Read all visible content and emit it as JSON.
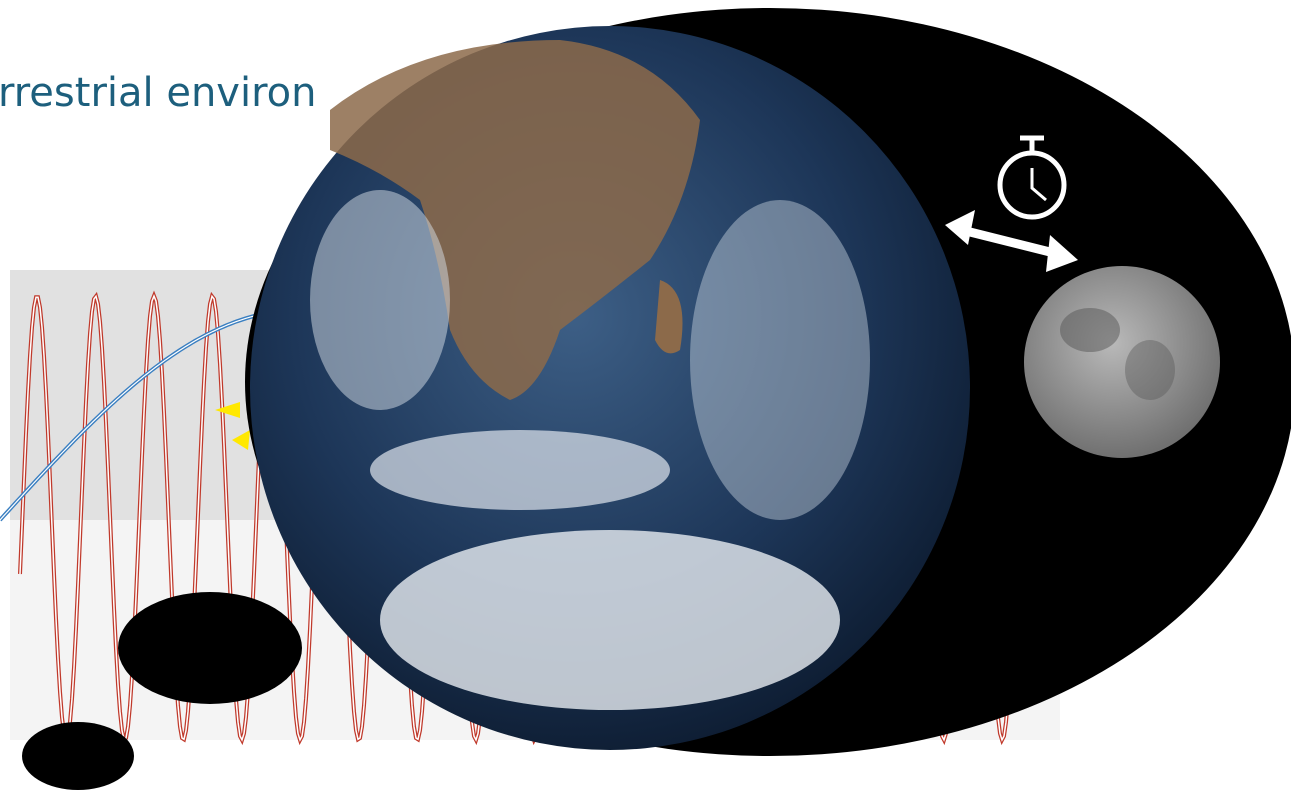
{
  "title": "rrestrial environ"
}
